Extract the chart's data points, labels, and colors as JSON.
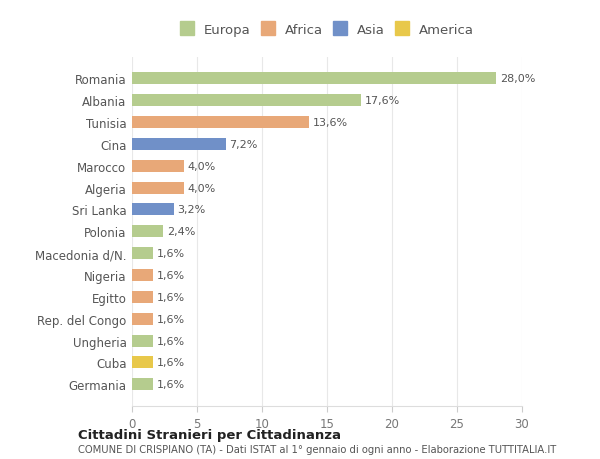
{
  "categories": [
    "Germania",
    "Cuba",
    "Ungheria",
    "Rep. del Congo",
    "Egitto",
    "Nigeria",
    "Macedonia d/N.",
    "Polonia",
    "Sri Lanka",
    "Algeria",
    "Marocco",
    "Cina",
    "Tunisia",
    "Albania",
    "Romania"
  ],
  "values": [
    1.6,
    1.6,
    1.6,
    1.6,
    1.6,
    1.6,
    1.6,
    2.4,
    3.2,
    4.0,
    4.0,
    7.2,
    13.6,
    17.6,
    28.0
  ],
  "labels": [
    "1,6%",
    "1,6%",
    "1,6%",
    "1,6%",
    "1,6%",
    "1,6%",
    "1,6%",
    "2,4%",
    "3,2%",
    "4,0%",
    "4,0%",
    "7,2%",
    "13,6%",
    "17,6%",
    "28,0%"
  ],
  "colors": [
    "#b5cc8e",
    "#e8c84a",
    "#b5cc8e",
    "#e8a878",
    "#e8a878",
    "#e8a878",
    "#b5cc8e",
    "#b5cc8e",
    "#7090c8",
    "#e8a878",
    "#e8a878",
    "#7090c8",
    "#e8a878",
    "#b5cc8e",
    "#b5cc8e"
  ],
  "legend_labels": [
    "Europa",
    "Africa",
    "Asia",
    "America"
  ],
  "legend_colors": [
    "#b5cc8e",
    "#e8a878",
    "#7090c8",
    "#e8c84a"
  ],
  "title": "Cittadini Stranieri per Cittadinanza",
  "subtitle": "COMUNE DI CRISPIANO (TA) - Dati ISTAT al 1° gennaio di ogni anno - Elaborazione TUTTITALIA.IT",
  "xlim": [
    0,
    30
  ],
  "xticks": [
    0,
    5,
    10,
    15,
    20,
    25,
    30
  ],
  "bg_color": "#ffffff",
  "plot_bg_color": "#ffffff",
  "grid_color": "#e8e8e8",
  "bar_height": 0.55
}
